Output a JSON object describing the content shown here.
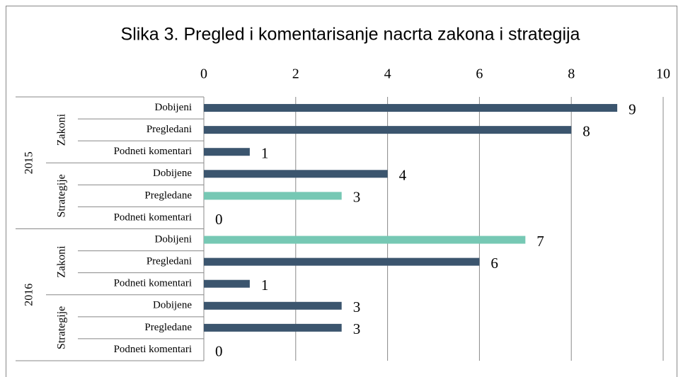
{
  "chart_data": {
    "type": "bar",
    "orientation": "horizontal",
    "title": "Slika 3. Pregled i komentarisanje nacrta zakona i strategija",
    "years": [
      {
        "name": "2015",
        "groups": [
          {
            "name": "Zakoni",
            "categories": [
              "Dobijeni",
              "Pregledani",
              "Podneti komentari"
            ]
          },
          {
            "name": "Strategije",
            "categories": [
              "Dobijene",
              "Pregledane",
              "Podneti komentari"
            ]
          }
        ]
      },
      {
        "name": "2016",
        "groups": [
          {
            "name": "Zakoni",
            "categories": [
              "Dobijeni",
              "Pregledani",
              "Podneti komentari"
            ]
          },
          {
            "name": "Strategije",
            "categories": [
              "Dobijene",
              "Pregledane",
              "Podneti komentari"
            ]
          }
        ]
      }
    ],
    "values": [
      9,
      8,
      1,
      4,
      3,
      0,
      7,
      6,
      1,
      3,
      3,
      0
    ],
    "colors": [
      "#3b556e",
      "#3b556e",
      "#3b556e",
      "#3b556e",
      "#76c8b4",
      "#3b556e",
      "#76c8b4",
      "#3b556e",
      "#3b556e",
      "#3b556e",
      "#3b556e",
      "#3b556e"
    ],
    "xlim": [
      0,
      10
    ],
    "xticks": [
      0,
      2,
      4,
      6,
      8,
      10
    ],
    "grid": true
  }
}
